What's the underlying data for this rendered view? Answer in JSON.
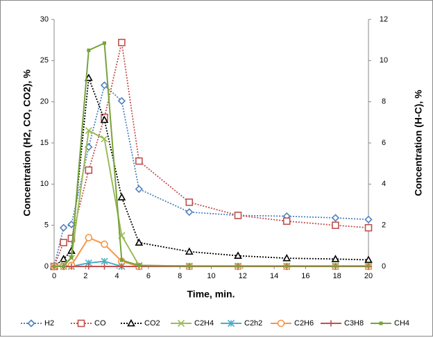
{
  "chart_data": {
    "type": "line",
    "x_label": "Time, min.",
    "y_label": "Concentration (H2, CO, CO2), %",
    "y2_label": "Concentration (H-C), %",
    "x": [
      0,
      0.6,
      1.1,
      2.2,
      3.2,
      4.3,
      5.4,
      8.6,
      11.7,
      14.8,
      17.9,
      20
    ],
    "xlim": [
      0,
      20
    ],
    "xticks": [
      0,
      2,
      4,
      6,
      8,
      10,
      12,
      14,
      16,
      18,
      20
    ],
    "ylim": [
      0,
      30
    ],
    "yticks": [
      0,
      5,
      10,
      15,
      20,
      25,
      30
    ],
    "y2lim": [
      0,
      12
    ],
    "y2ticks": [
      0,
      2,
      4,
      6,
      8,
      10,
      12
    ],
    "legend": "bottom",
    "grid": false,
    "series": [
      {
        "name": "H2",
        "color": "#4f81bd",
        "marker": "diamond",
        "line_style": "dotted",
        "values": [
          0,
          4.7,
          5.1,
          14.5,
          22,
          20.1,
          9.4,
          6.6,
          6.2,
          6.1,
          5.9,
          5.7
        ]
      },
      {
        "name": "CO",
        "color": "#c0504d",
        "marker": "square",
        "line_style": "dotted",
        "values": [
          0,
          2.9,
          3.4,
          11.7,
          18.1,
          27.2,
          12.8,
          7.8,
          6.2,
          5.5,
          5,
          4.7
        ]
      },
      {
        "name": "CO2",
        "color": "#000000",
        "marker": "triangle",
        "line_style": "dotted",
        "values": [
          0,
          0.9,
          1.9,
          22.9,
          17.8,
          8.4,
          2.9,
          1.8,
          1.3,
          1,
          0.9,
          0.8
        ]
      },
      {
        "name": "C2H4",
        "color": "#9bbb59",
        "marker": "x",
        "line_style": "solid",
        "axis": "y2",
        "values": [
          0,
          0.1,
          0.4,
          6.6,
          6.2,
          1.5,
          0.05,
          0.02,
          0.02,
          0.02,
          0.02,
          0.02
        ]
      },
      {
        "name": "C2h2",
        "color": "#4bacc6",
        "marker": "star",
        "line_style": "solid",
        "axis": "y2",
        "values": [
          0,
          0,
          0,
          0.17,
          0.25,
          0,
          0,
          0,
          0,
          0,
          0,
          0
        ]
      },
      {
        "name": "C2H6",
        "color": "#f79646",
        "marker": "circle",
        "line_style": "solid",
        "axis": "y2",
        "values": [
          0,
          0,
          0.05,
          1.4,
          1.08,
          0.25,
          0,
          0,
          0,
          0,
          0,
          0
        ]
      },
      {
        "name": "C3H8",
        "color": "#c0504d",
        "marker": "plus",
        "line_style": "solid",
        "axis": "y2",
        "values": [
          0,
          0,
          0,
          0,
          0,
          0,
          0,
          0,
          0,
          0,
          0,
          0
        ]
      },
      {
        "name": "CH4",
        "color": "#77a33a",
        "marker": "dot-square",
        "line_style": "solid",
        "axis": "y2",
        "values": [
          0,
          0,
          0.45,
          10.5,
          10.85,
          0.3,
          0.05,
          0.02,
          0.02,
          0.02,
          0.02,
          0.02
        ]
      }
    ]
  }
}
